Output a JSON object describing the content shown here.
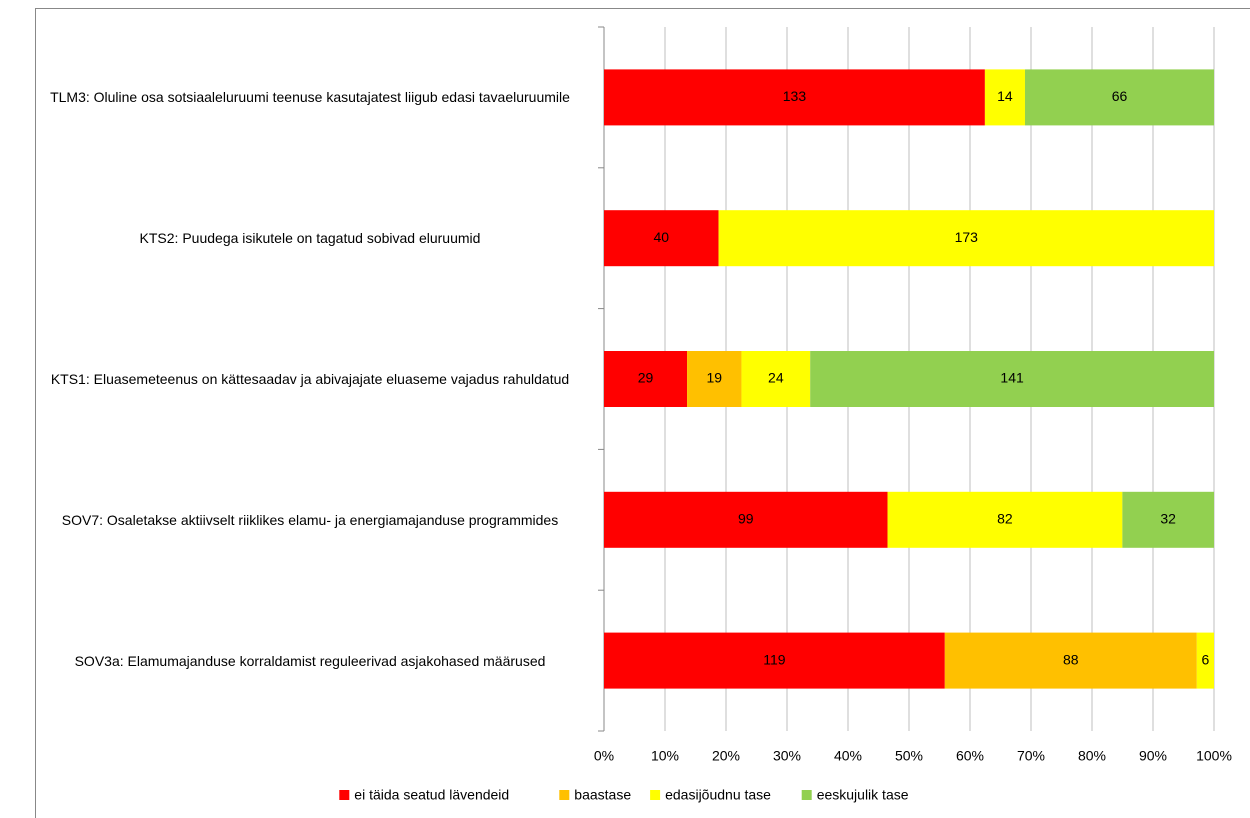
{
  "chart_data": {
    "type": "bar",
    "orientation": "horizontal",
    "stacking": "percent",
    "categories": [
      "TLM3: Oluline osa sotsiaaleluruumi teenuse kasutajatest liigub edasi tavaeluruumile",
      "KTS2: Puudega isikutele on tagatud sobivad eluruumid",
      "KTS1: Eluasemeteenus on kättesaadav ja abivajajate eluaseme vajadus rahuldatud",
      "SOV7: Osaletakse aktiivselt riiklikes elamu- ja energiamajanduse programmides",
      "SOV3a: Elamumajanduse korraldamist reguleerivad asjakohased määrused"
    ],
    "series": [
      {
        "name": "ei täida seatud lävendeid",
        "color": "#ff0000",
        "values": [
          133,
          40,
          29,
          99,
          119
        ]
      },
      {
        "name": "baastase",
        "color": "#ffc000",
        "values": [
          null,
          null,
          19,
          null,
          88
        ]
      },
      {
        "name": "edasijõudnu tase",
        "color": "#ffff00",
        "values": [
          14,
          173,
          24,
          82,
          6
        ]
      },
      {
        "name": "eeskujulik tase",
        "color": "#92d050",
        "values": [
          66,
          null,
          141,
          32,
          null
        ]
      }
    ],
    "xlim": [
      0,
      100
    ],
    "xticks": [
      {
        "value": 0,
        "label": "0%"
      },
      {
        "value": 10,
        "label": "10%"
      },
      {
        "value": 20,
        "label": "20%"
      },
      {
        "value": 30,
        "label": "30%"
      },
      {
        "value": 40,
        "label": "40%"
      },
      {
        "value": 50,
        "label": "50%"
      },
      {
        "value": 60,
        "label": "60%"
      },
      {
        "value": 70,
        "label": "70%"
      },
      {
        "value": 80,
        "label": "80%"
      },
      {
        "value": 90,
        "label": "90%"
      },
      {
        "value": 100,
        "label": "100%"
      }
    ],
    "grid": true,
    "legend": "bottom"
  }
}
